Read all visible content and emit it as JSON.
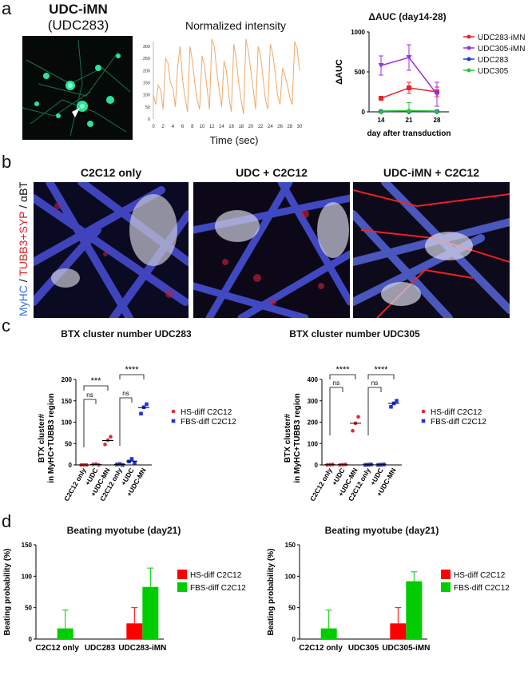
{
  "panels": {
    "a": "a",
    "b": "b",
    "c": "c",
    "d": "d"
  },
  "a": {
    "image_title": "UDC-iMN",
    "image_subtitle": "(UDC283)",
    "trace": {
      "title": "Normalized intensity",
      "xlabel": "Time (sec)",
      "xticks": [
        "0",
        "2",
        "4",
        "6",
        "8",
        "10",
        "12",
        "14",
        "16",
        "18",
        "20",
        "22",
        "24",
        "26",
        "28",
        "30"
      ],
      "yticks": [
        "0",
        "50",
        "100",
        "150",
        "200",
        "250",
        "300"
      ],
      "values": [
        100,
        60,
        140,
        120,
        40,
        250,
        230,
        150,
        130,
        50,
        220,
        300,
        160,
        90,
        30,
        300,
        240,
        150,
        80,
        40,
        260,
        220,
        130,
        40,
        330,
        300,
        200,
        120,
        50,
        240,
        200,
        90,
        30,
        310,
        250,
        150,
        80,
        20,
        330,
        280,
        200,
        120,
        40,
        300,
        260,
        170,
        80,
        40,
        310,
        270,
        190,
        100,
        60,
        210,
        180,
        140,
        90,
        60,
        320,
        290,
        200
      ],
      "color": "#f0a868"
    },
    "auc": {
      "title": "ΔAUC (day14-28)",
      "ylabel": "ΔAUC",
      "xlabel": "day after transduction",
      "xticks": [
        "14",
        "21",
        "28"
      ],
      "yticks": [
        "0",
        "500",
        "1000"
      ]
    }
  },
  "chart_data": [
    {
      "type": "line",
      "title": "ΔAUC (day14-28)",
      "xlabel": "day after transduction",
      "ylabel": "ΔAUC",
      "x": [
        14,
        21,
        28
      ],
      "ylim": [
        0,
        1000
      ],
      "series": [
        {
          "name": "UDC283-iMN",
          "values": [
            170,
            300,
            250
          ],
          "err": [
            20,
            70,
            60
          ],
          "color": "#e8252a"
        },
        {
          "name": "UDC305-iMN",
          "values": [
            580,
            680,
            220
          ],
          "err": [
            120,
            160,
            150
          ],
          "color": "#9b30e0"
        },
        {
          "name": "UDC283",
          "values": [
            5,
            5,
            5
          ],
          "err": [
            0,
            0,
            0
          ],
          "color": "#2233dd"
        },
        {
          "name": "UDC305",
          "values": [
            10,
            15,
            10
          ],
          "err": [
            0,
            100,
            0
          ],
          "color": "#2cc23c"
        }
      ],
      "legend": "right"
    },
    {
      "type": "scatter",
      "title": "BTX cluster number UDC283",
      "ylabel": "BTX cluster#\nin MyHC+TUBB3 region",
      "ylim": [
        0,
        200
      ],
      "yticks": [
        "0",
        "50",
        "100",
        "150",
        "200"
      ],
      "categories": [
        "C2C12 only",
        "+UDC",
        "+UDC-MN",
        "C2C12 only",
        "+UDC",
        "+UDC-MN"
      ],
      "series": [
        {
          "name": "HS-diff C2C12",
          "color": "#e8252a",
          "points": [
            [
              0,
              0
            ],
            [
              0,
              0
            ],
            [
              0,
              0
            ],
            [
              1,
              1
            ],
            [
              1,
              2
            ],
            [
              1,
              0
            ],
            [
              2,
              48
            ],
            [
              2,
              58
            ],
            [
              2,
              66
            ]
          ],
          "mean": [
            0,
            1,
            57
          ]
        },
        {
          "name": "FBS-diff C2C12",
          "color": "#2233dd",
          "points": [
            [
              3,
              1
            ],
            [
              3,
              2
            ],
            [
              3,
              0
            ],
            [
              4,
              8
            ],
            [
              4,
              14
            ],
            [
              4,
              5
            ],
            [
              5,
              120
            ],
            [
              5,
              135
            ],
            [
              5,
              142
            ]
          ],
          "mean": [
            1,
            9,
            134
          ]
        }
      ],
      "significance": [
        "ns",
        "***",
        "ns",
        "****"
      ]
    },
    {
      "type": "scatter",
      "title": "BTX cluster number UDC305",
      "ylabel": "BTX cluster#\nin MyHC+TUBB3 region",
      "ylim": [
        0,
        400
      ],
      "yticks": [
        "0",
        "100",
        "200",
        "300",
        "400"
      ],
      "categories": [
        "C2C12 only",
        "+UDC",
        "+UDC-MN",
        "C2C12 only",
        "+UDC",
        "+UDC-MN"
      ],
      "series": [
        {
          "name": "HS-diff C2C12",
          "color": "#e8252a",
          "points": [
            [
              0,
              0
            ],
            [
              0,
              1
            ],
            [
              0,
              2
            ],
            [
              1,
              0
            ],
            [
              1,
              1
            ],
            [
              1,
              2
            ],
            [
              2,
              160
            ],
            [
              2,
              195
            ],
            [
              2,
              225
            ]
          ],
          "mean": [
            1,
            1,
            195
          ]
        },
        {
          "name": "FBS-diff C2C12",
          "color": "#2233dd",
          "points": [
            [
              3,
              0
            ],
            [
              3,
              1
            ],
            [
              3,
              2
            ],
            [
              4,
              0
            ],
            [
              4,
              1
            ],
            [
              4,
              2
            ],
            [
              5,
              272
            ],
            [
              5,
              288
            ],
            [
              5,
              300
            ]
          ],
          "mean": [
            1,
            1,
            288
          ]
        }
      ],
      "significance": [
        "ns",
        "****",
        "ns",
        "****"
      ]
    },
    {
      "type": "bar",
      "title": "Beating myotube (day21)",
      "ylabel": "Beating probability (%)",
      "categories": [
        "C2C12 only",
        "UDC283",
        "UDC283-iMN"
      ],
      "ylim": [
        0,
        150
      ],
      "yticks": [
        "0",
        "50",
        "100",
        "150"
      ],
      "series": [
        {
          "name": "HS-diff C2C12",
          "color": "#ff0000",
          "values": [
            0,
            0,
            25
          ],
          "err": [
            0,
            0,
            25
          ]
        },
        {
          "name": "FBS-diff C2C12",
          "color": "#00cc00",
          "values": [
            17,
            0,
            83
          ],
          "err": [
            29,
            0,
            30
          ]
        }
      ]
    },
    {
      "type": "bar",
      "title": "Beating myotube (day21)",
      "ylabel": "Beating probability (%)",
      "categories": [
        "C2C12 only",
        "UDC305",
        "UDC305-iMN"
      ],
      "ylim": [
        0,
        150
      ],
      "yticks": [
        "0",
        "50",
        "100",
        "150"
      ],
      "series": [
        {
          "name": "HS-diff C2C12",
          "color": "#ff0000",
          "values": [
            0,
            0,
            25
          ],
          "err": [
            0,
            0,
            25
          ]
        },
        {
          "name": "FBS-diff C2C12",
          "color": "#00cc00",
          "values": [
            17,
            0,
            92
          ],
          "err": [
            29,
            0,
            15
          ]
        }
      ]
    }
  ],
  "b": {
    "titles": [
      "C2C12 only",
      "UDC + C2C12",
      "UDC-iMN + C2C12"
    ],
    "ylabel_parts": [
      {
        "text": "MyHC",
        "color": "#3a6fd8"
      },
      {
        "text": " / ",
        "color": "#111111"
      },
      {
        "text": "TUBB3+SYP",
        "color": "#e02020"
      },
      {
        "text": " / αBTX",
        "color": "#111111"
      }
    ]
  }
}
